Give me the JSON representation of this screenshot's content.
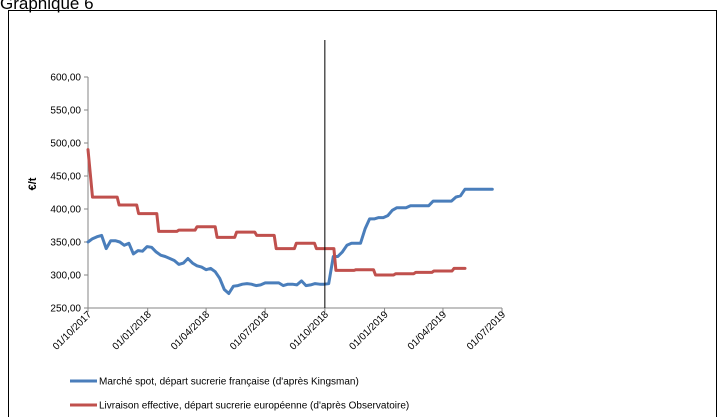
{
  "page": {
    "heading": "Graphique 6"
  },
  "chart_data": {
    "type": "line",
    "ylabel": "€/t",
    "xlabel": "",
    "ylim": [
      250,
      600
    ],
    "yticks": [
      250,
      300,
      350,
      400,
      450,
      500,
      550,
      600
    ],
    "ytick_labels": [
      "250,00",
      "300,00",
      "350,00",
      "400,00",
      "450,00",
      "500,00",
      "550,00",
      "600,00"
    ],
    "xlim": [
      "2017-10-01",
      "2019-07-01"
    ],
    "xticks": [
      "2017-10-01",
      "2018-01-01",
      "2018-04-01",
      "2018-07-01",
      "2018-10-01",
      "2019-01-01",
      "2019-04-01",
      "2019-07-01"
    ],
    "xtick_labels": [
      "01/10/2017",
      "01/01/2018",
      "01/04/2018",
      "01/07/2018",
      "01/10/2018",
      "01/01/2019",
      "01/04/2019",
      "01/07/2019"
    ],
    "marker_line": "2018-10-01",
    "grid": false,
    "legend_position": "bottom-left",
    "series": [
      {
        "name": "Marché spot, départ sucrerie française (d'après Kingsman)",
        "color": "#4A7EBB",
        "x": [
          "2017-10-01",
          "2017-10-08",
          "2017-10-15",
          "2017-10-22",
          "2017-10-29",
          "2017-11-05",
          "2017-11-12",
          "2017-11-19",
          "2017-11-26",
          "2017-12-03",
          "2017-12-10",
          "2017-12-17",
          "2017-12-24",
          "2017-12-31",
          "2018-01-07",
          "2018-01-14",
          "2018-01-21",
          "2018-01-28",
          "2018-02-04",
          "2018-02-11",
          "2018-02-18",
          "2018-02-25",
          "2018-03-04",
          "2018-03-11",
          "2018-03-18",
          "2018-03-25",
          "2018-04-01",
          "2018-04-08",
          "2018-04-15",
          "2018-04-22",
          "2018-04-29",
          "2018-05-06",
          "2018-05-13",
          "2018-05-20",
          "2018-05-27",
          "2018-06-03",
          "2018-06-10",
          "2018-06-17",
          "2018-06-24",
          "2018-07-01",
          "2018-07-08",
          "2018-07-15",
          "2018-07-22",
          "2018-07-29",
          "2018-08-05",
          "2018-08-12",
          "2018-08-19",
          "2018-08-26",
          "2018-09-02",
          "2018-09-09",
          "2018-09-16",
          "2018-09-23",
          "2018-09-30",
          "2018-10-07",
          "2018-10-14",
          "2018-10-21",
          "2018-10-28",
          "2018-11-04",
          "2018-11-11",
          "2018-11-18",
          "2018-11-25",
          "2018-12-02",
          "2018-12-09",
          "2018-12-16",
          "2018-12-23",
          "2018-12-30",
          "2019-01-06",
          "2019-01-13",
          "2019-01-20",
          "2019-01-27",
          "2019-02-03",
          "2019-02-10",
          "2019-02-17",
          "2019-02-24",
          "2019-03-03",
          "2019-03-10",
          "2019-03-17",
          "2019-03-24",
          "2019-03-31",
          "2019-04-07",
          "2019-04-14",
          "2019-04-21",
          "2019-04-28",
          "2019-05-05",
          "2019-05-12",
          "2019-05-19",
          "2019-05-26",
          "2019-06-02",
          "2019-06-09",
          "2019-06-16"
        ],
        "values": [
          350,
          355,
          358,
          360,
          340,
          352,
          352,
          350,
          345,
          348,
          332,
          337,
          336,
          343,
          342,
          335,
          330,
          328,
          325,
          322,
          316,
          318,
          325,
          318,
          314,
          312,
          308,
          310,
          305,
          295,
          278,
          272,
          283,
          284,
          286,
          287,
          286,
          284,
          285,
          288,
          288,
          288,
          288,
          284,
          286,
          286,
          285,
          291,
          284,
          285,
          287,
          286,
          286,
          287,
          328,
          328,
          335,
          345,
          348,
          348,
          348,
          370,
          385,
          385,
          387,
          387,
          390,
          398,
          402,
          402,
          402,
          405,
          405,
          405,
          405,
          405,
          412,
          412,
          412,
          412,
          412,
          418,
          420,
          430,
          430,
          430,
          430,
          430,
          430,
          430
        ]
      },
      {
        "name": "Livraison effective, départ sucrerie européenne (d'après Observatoire)",
        "color": "#C0504D",
        "x": [
          "2017-10-01",
          "2017-10-08",
          "2017-10-15",
          "2017-11-15",
          "2017-11-18",
          "2017-12-15",
          "2017-12-18",
          "2018-01-15",
          "2018-01-18",
          "2018-02-15",
          "2018-02-18",
          "2018-03-15",
          "2018-03-18",
          "2018-04-15",
          "2018-04-18",
          "2018-05-15",
          "2018-05-18",
          "2018-06-15",
          "2018-06-18",
          "2018-07-15",
          "2018-07-18",
          "2018-08-15",
          "2018-08-18",
          "2018-09-15",
          "2018-09-18",
          "2018-10-15",
          "2018-10-18",
          "2018-11-15",
          "2018-11-18",
          "2018-12-15",
          "2018-12-18",
          "2019-01-15",
          "2019-01-18",
          "2019-02-15",
          "2019-02-18",
          "2019-03-15",
          "2019-03-18",
          "2019-04-15",
          "2019-04-18",
          "2019-05-05"
        ],
        "values": [
          490,
          418,
          418,
          418,
          406,
          406,
          393,
          393,
          366,
          366,
          368,
          368,
          373,
          373,
          357,
          357,
          365,
          365,
          360,
          360,
          340,
          340,
          348,
          348,
          340,
          340,
          307,
          307,
          308,
          308,
          300,
          300,
          302,
          302,
          304,
          304,
          306,
          306,
          310,
          310
        ]
      }
    ]
  }
}
